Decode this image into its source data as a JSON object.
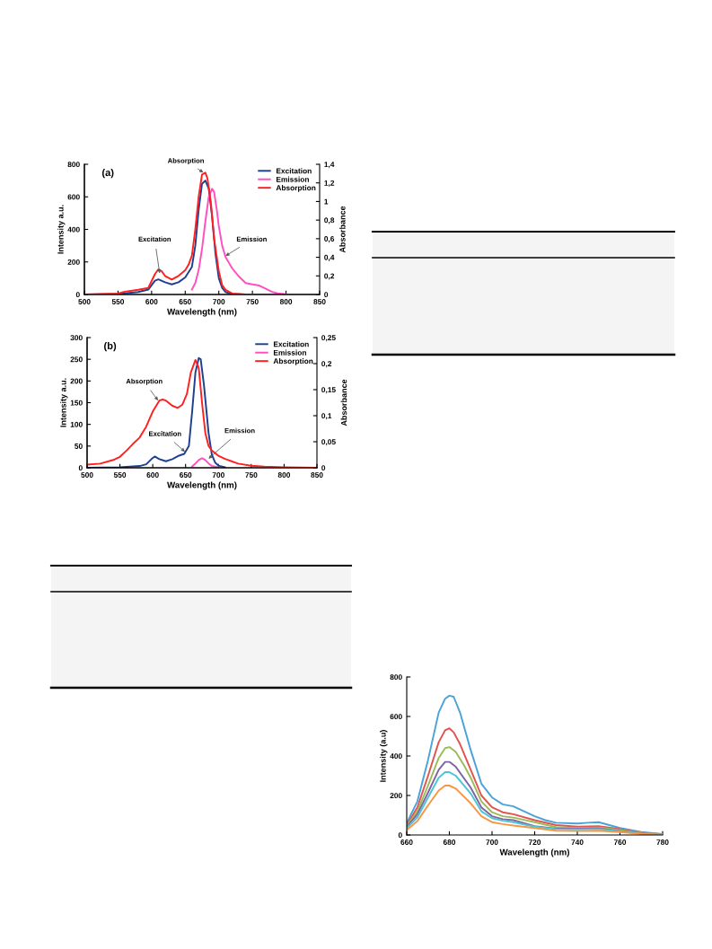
{
  "chart_data": [
    {
      "type": "line",
      "xlabel": "Wavelength (nm)",
      "ylabel": "Intensity a.u.",
      "y2label": "Absorbance",
      "xlim": [
        500,
        850
      ],
      "xticks": [
        500,
        550,
        600,
        650,
        700,
        750,
        800,
        850
      ],
      "ylim": [
        0,
        800
      ],
      "yticks": [
        0,
        200,
        400,
        600,
        800
      ],
      "y2lim": [
        0,
        1.4
      ],
      "y2ticks": [
        0,
        {
          "value": 0.2,
          "label": "0,2"
        },
        {
          "value": 0.4,
          "label": "0,4"
        },
        {
          "value": 0.6,
          "label": "0,6"
        },
        {
          "value": 0.8,
          "label": "0,8"
        },
        1,
        {
          "value": 1.2,
          "label": "1,2"
        },
        {
          "value": 1.4,
          "label": "1,4"
        }
      ],
      "legend": "top right",
      "grid": false,
      "marker": "none",
      "line_style": "solid",
      "annotations": [
        "(a)",
        {
          "text": "Absorption",
          "x": 677,
          "y": 750
        },
        {
          "text": "Excitation",
          "x": 612,
          "y": 130
        },
        {
          "text": "Emission",
          "x": 710,
          "y": 237
        }
      ],
      "series": [
        {
          "name": "Excitation",
          "color": "#1f3f8f",
          "x": [
            500,
            550,
            580,
            595,
            605,
            610,
            620,
            630,
            640,
            650,
            660,
            665,
            670,
            675,
            680,
            685,
            690,
            695,
            700,
            705,
            710,
            720,
            740,
            850
          ],
          "values": [
            0,
            3,
            15,
            30,
            85,
            93,
            75,
            62,
            75,
            105,
            170,
            300,
            520,
            680,
            700,
            650,
            480,
            250,
            100,
            40,
            15,
            3,
            0,
            0
          ]
        },
        {
          "name": "Emission",
          "color": "#ff4fc0",
          "x": [
            660,
            665,
            670,
            675,
            680,
            685,
            690,
            693,
            697,
            700,
            705,
            710,
            720,
            730,
            740,
            750,
            760,
            770,
            780,
            790,
            800,
            850
          ],
          "values": [
            30,
            70,
            150,
            280,
            450,
            600,
            650,
            630,
            520,
            420,
            300,
            230,
            160,
            110,
            70,
            62,
            55,
            35,
            15,
            5,
            2,
            0
          ]
        },
        {
          "name": "Absorption",
          "color": "#ff2020",
          "axis": "y2",
          "x": [
            500,
            550,
            560,
            580,
            595,
            605,
            610,
            615,
            620,
            630,
            640,
            650,
            655,
            660,
            665,
            670,
            675,
            680,
            683,
            688,
            693,
            700,
            705,
            710,
            720,
            740,
            850
          ],
          "values": [
            0,
            0.01,
            0.03,
            0.05,
            0.07,
            0.22,
            0.27,
            0.25,
            0.2,
            0.16,
            0.2,
            0.26,
            0.32,
            0.42,
            0.7,
            1.05,
            1.29,
            1.31,
            1.25,
            1.0,
            0.6,
            0.25,
            0.1,
            0.05,
            0.01,
            0,
            0
          ]
        }
      ]
    },
    {
      "type": "line",
      "xlabel": "Wavelength (nm)",
      "ylabel": "Intensity a.u.",
      "y2label": "Absorbance",
      "xlim": [
        500,
        850
      ],
      "xticks": [
        500,
        550,
        600,
        650,
        700,
        750,
        800,
        850
      ],
      "ylim": [
        0,
        300
      ],
      "yticks": [
        0,
        50,
        100,
        150,
        200,
        250,
        300
      ],
      "y2lim": [
        0,
        0.25
      ],
      "y2ticks": [
        0,
        {
          "value": 0.05,
          "label": "0,05"
        },
        {
          "value": 0.1,
          "label": "0,1"
        },
        {
          "value": 0.15,
          "label": "0,15"
        },
        {
          "value": 0.2,
          "label": "0,2"
        },
        {
          "value": 0.25,
          "label": "0,25"
        }
      ],
      "legend": "top right",
      "grid": false,
      "marker": "none",
      "line_style": "solid",
      "annotations": [
        "(b)",
        {
          "text": "Absorption",
          "x": 608,
          "y": 155
        },
        {
          "text": "Excitation",
          "x": 649,
          "y": 37
        },
        {
          "text": "Emission",
          "x": 685,
          "y": 21
        }
      ],
      "series": [
        {
          "name": "Excitation",
          "color": "#1f3f8f",
          "x": [
            500,
            550,
            580,
            590,
            598,
            603,
            610,
            620,
            630,
            640,
            648,
            655,
            660,
            665,
            670,
            673,
            678,
            685,
            690,
            695,
            700,
            710
          ],
          "values": [
            0,
            1,
            4,
            8,
            20,
            26,
            20,
            15,
            20,
            28,
            32,
            50,
            130,
            220,
            253,
            250,
            190,
            80,
            30,
            12,
            5,
            1
          ]
        },
        {
          "name": "Emission",
          "color": "#ff4fc0",
          "x": [
            660,
            665,
            670,
            675,
            680,
            685,
            690,
            700
          ],
          "values": [
            3,
            10,
            18,
            22,
            18,
            10,
            4,
            1
          ]
        },
        {
          "name": "Absorption",
          "color": "#ff2020",
          "axis": "y2",
          "x": [
            500,
            520,
            540,
            550,
            560,
            570,
            580,
            590,
            600,
            610,
            615,
            620,
            630,
            638,
            645,
            652,
            658,
            665,
            670,
            675,
            680,
            685,
            690,
            700,
            710,
            730,
            750,
            770,
            800,
            850
          ],
          "values": [
            0.006,
            0.008,
            0.015,
            0.021,
            0.033,
            0.046,
            0.058,
            0.079,
            0.108,
            0.129,
            0.131,
            0.129,
            0.119,
            0.115,
            0.121,
            0.142,
            0.183,
            0.207,
            0.192,
            0.125,
            0.067,
            0.042,
            0.033,
            0.023,
            0.017,
            0.008,
            0.004,
            0.002,
            0.001,
            0
          ]
        }
      ]
    },
    {
      "type": "line",
      "xlabel": "Wavelength (nm)",
      "ylabel": "Intensity (a.u)",
      "xlim": [
        660,
        780
      ],
      "xticks": [
        660,
        680,
        700,
        720,
        740,
        760,
        780
      ],
      "ylim": [
        0,
        800
      ],
      "yticks": [
        0,
        200,
        400,
        600,
        800
      ],
      "legend": false,
      "grid": false,
      "marker": "none",
      "line_style": "solid",
      "series": [
        {
          "color": "#4aa3d8",
          "x": [
            660,
            665,
            670,
            675,
            678,
            680,
            682,
            685,
            690,
            695,
            700,
            705,
            710,
            715,
            720,
            725,
            730,
            740,
            745,
            750,
            755,
            760,
            770,
            780
          ],
          "values": [
            60,
            170,
            380,
            620,
            690,
            705,
            700,
            620,
            430,
            260,
            190,
            155,
            145,
            120,
            95,
            75,
            62,
            58,
            62,
            65,
            50,
            35,
            15,
            5
          ]
        },
        {
          "color": "#e0534f",
          "x": [
            660,
            665,
            670,
            675,
            678,
            680,
            682,
            685,
            690,
            695,
            700,
            705,
            710,
            720,
            730,
            740,
            750,
            760,
            770,
            780
          ],
          "values": [
            50,
            140,
            300,
            470,
            530,
            540,
            520,
            460,
            330,
            200,
            140,
            115,
            105,
            75,
            50,
            42,
            45,
            30,
            12,
            3
          ]
        },
        {
          "color": "#9bbb59",
          "x": [
            660,
            665,
            670,
            675,
            678,
            680,
            683,
            687,
            690,
            695,
            700,
            705,
            710,
            720,
            730,
            740,
            750,
            760,
            770,
            780
          ],
          "values": [
            45,
            120,
            250,
            390,
            440,
            445,
            420,
            350,
            290,
            170,
            115,
            95,
            88,
            65,
            40,
            35,
            38,
            25,
            10,
            3
          ]
        },
        {
          "color": "#8064a2",
          "x": [
            660,
            665,
            670,
            675,
            678,
            680,
            683,
            690,
            695,
            700,
            705,
            710,
            720,
            730,
            740,
            750,
            760,
            770,
            780
          ],
          "values": [
            40,
            105,
            215,
            330,
            370,
            370,
            345,
            240,
            140,
            95,
            80,
            75,
            45,
            32,
            32,
            33,
            20,
            8,
            2
          ]
        },
        {
          "color": "#4bc6d6",
          "x": [
            660,
            665,
            670,
            675,
            678,
            680,
            683,
            690,
            695,
            700,
            705,
            710,
            720,
            730,
            740,
            750,
            760,
            770,
            780
          ],
          "values": [
            35,
            90,
            190,
            290,
            318,
            318,
            300,
            210,
            120,
            85,
            72,
            65,
            42,
            30,
            28,
            30,
            18,
            7,
            2
          ]
        },
        {
          "color": "#f79646",
          "x": [
            660,
            665,
            670,
            675,
            678,
            680,
            683,
            690,
            695,
            700,
            705,
            710,
            720,
            730,
            740,
            750,
            760,
            770,
            780
          ],
          "values": [
            25,
            70,
            150,
            225,
            250,
            250,
            235,
            160,
            95,
            65,
            55,
            48,
            35,
            22,
            20,
            22,
            15,
            6,
            1
          ]
        }
      ]
    }
  ]
}
